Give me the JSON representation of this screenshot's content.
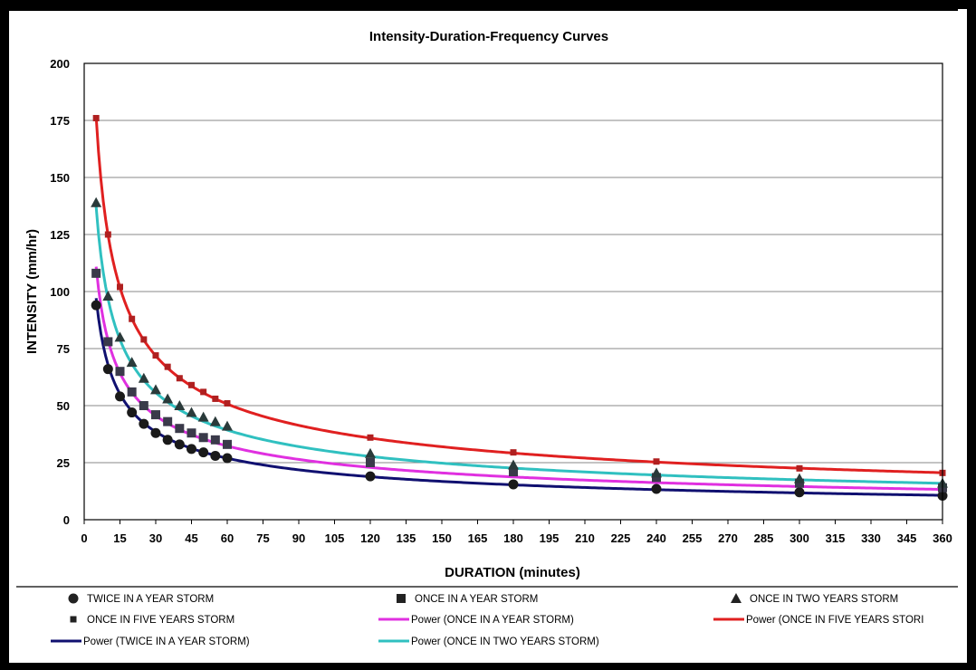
{
  "chart_data": {
    "type": "scatter",
    "title": "Intensity-Duration-Frequency Curves",
    "xlabel": "DURATION (minutes)",
    "ylabel": "INTENSITY (mm/hr)",
    "xlim": [
      0,
      360
    ],
    "ylim": [
      0,
      200
    ],
    "xticks": [
      0,
      15,
      30,
      45,
      60,
      75,
      90,
      105,
      120,
      135,
      150,
      165,
      180,
      195,
      210,
      225,
      240,
      255,
      270,
      285,
      300,
      315,
      330,
      345,
      360
    ],
    "yticks": [
      0,
      25,
      50,
      75,
      100,
      125,
      150,
      175,
      200
    ],
    "grid": "horizontal",
    "legend_position": "bottom",
    "x": [
      5,
      10,
      15,
      20,
      25,
      30,
      35,
      40,
      45,
      50,
      55,
      60,
      120,
      180,
      240,
      300,
      360
    ],
    "series": [
      {
        "name": "TWICE IN A YEAR STORM",
        "kind": "points",
        "marker": "circle",
        "color": "#1a1a1a",
        "y": [
          94,
          66,
          54,
          47,
          42,
          38,
          35,
          33,
          31,
          29.5,
          28,
          27,
          19,
          15.5,
          13.5,
          12,
          10.5
        ]
      },
      {
        "name": "ONCE IN A YEAR STORM",
        "kind": "points",
        "marker": "square",
        "color": "#3a3a4a",
        "y": [
          108,
          78,
          65,
          56,
          50,
          46,
          43,
          40,
          38,
          36,
          35,
          33,
          25,
          21,
          18.5,
          16,
          14
        ]
      },
      {
        "name": "ONCE IN TWO YEARS STORM",
        "kind": "points",
        "marker": "triangle",
        "color": "#2a3a3a",
        "y": [
          139,
          98,
          80,
          69,
          62,
          57,
          53,
          50,
          47,
          45,
          43,
          41,
          29,
          24,
          20.5,
          18,
          16
        ]
      },
      {
        "name": "ONCE IN FIVE YEARS STORM",
        "kind": "points",
        "marker": "smallsquare",
        "color": "#b02020",
        "y": [
          176,
          125,
          102,
          88,
          79,
          72,
          67,
          62,
          59,
          56,
          53,
          51,
          36,
          29.5,
          25.5,
          22.5,
          20.5
        ]
      },
      {
        "name": "Power (ONCE IN A YEAR STORM)",
        "kind": "line",
        "color": "#e030e0",
        "a": 246.5,
        "b": 0.4963
      },
      {
        "name": "Power (ONCE IN FIVE YEARS STORI",
        "kind": "line",
        "color": "#e02020",
        "a": 396.9,
        "b": 0.5026
      },
      {
        "name": "Power (TWICE IN A YEAR STORM)",
        "kind": "line",
        "color": "#101070",
        "a": 222.8,
        "b": 0.516
      },
      {
        "name": "Power (ONCE IN TWO YEARS STORM)",
        "kind": "line",
        "color": "#30c0c0",
        "a": 308.4,
        "b": 0.5032
      }
    ]
  }
}
